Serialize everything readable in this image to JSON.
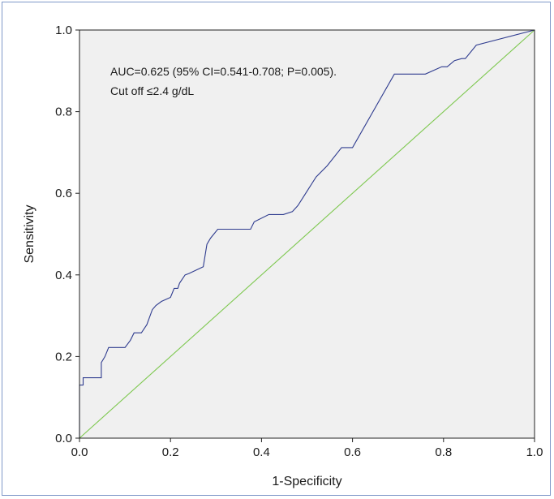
{
  "chart_data": {
    "type": "line",
    "title": "",
    "xlabel": "1-Specificity",
    "ylabel": "Sensitivity",
    "xlim": [
      0,
      1
    ],
    "ylim": [
      0,
      1
    ],
    "xticks": [
      "0.0",
      "0.2",
      "0.4",
      "0.6",
      "0.8",
      "1.0"
    ],
    "yticks": [
      "0.0",
      "0.2",
      "0.4",
      "0.6",
      "0.8",
      "1.0"
    ],
    "grid": false,
    "legend": "none",
    "annotations": [
      "AUC=0.625 (95% CI=0.541-0.708; P=0.005).",
      "Cut off ≤2.4 g/dL"
    ],
    "colors": {
      "plot_background": "#f0f0f0",
      "roc_line": "#2f3c8f",
      "reference_line": "#7ec850",
      "frame_border": "#7f98c9"
    },
    "series": [
      {
        "color": "#2f3c8f",
        "x": [
          0.0,
          0.0,
          0.008,
          0.008,
          0.048,
          0.048,
          0.056,
          0.064,
          0.072,
          0.1,
          0.112,
          0.12,
          0.136,
          0.148,
          0.16,
          0.168,
          0.18,
          0.2,
          0.208,
          0.216,
          0.22,
          0.232,
          0.24,
          0.272,
          0.28,
          0.288,
          0.304,
          0.32,
          0.376,
          0.384,
          0.416,
          0.448,
          0.468,
          0.48,
          0.52,
          0.544,
          0.576,
          0.6,
          0.692,
          0.72,
          0.76,
          0.796,
          0.808,
          0.824,
          0.84,
          0.848,
          0.872,
          1.0
        ],
        "y": [
          0.0,
          0.13,
          0.13,
          0.148,
          0.148,
          0.185,
          0.2,
          0.222,
          0.222,
          0.222,
          0.24,
          0.258,
          0.258,
          0.278,
          0.315,
          0.325,
          0.335,
          0.345,
          0.367,
          0.367,
          0.38,
          0.4,
          0.403,
          0.42,
          0.475,
          0.49,
          0.512,
          0.512,
          0.512,
          0.53,
          0.548,
          0.548,
          0.555,
          0.57,
          0.64,
          0.667,
          0.712,
          0.712,
          0.892,
          0.892,
          0.892,
          0.91,
          0.91,
          0.925,
          0.93,
          0.93,
          0.963,
          1.0
        ]
      },
      {
        "color": "#7ec850",
        "x": [
          0,
          1
        ],
        "y": [
          0,
          1
        ]
      }
    ]
  }
}
